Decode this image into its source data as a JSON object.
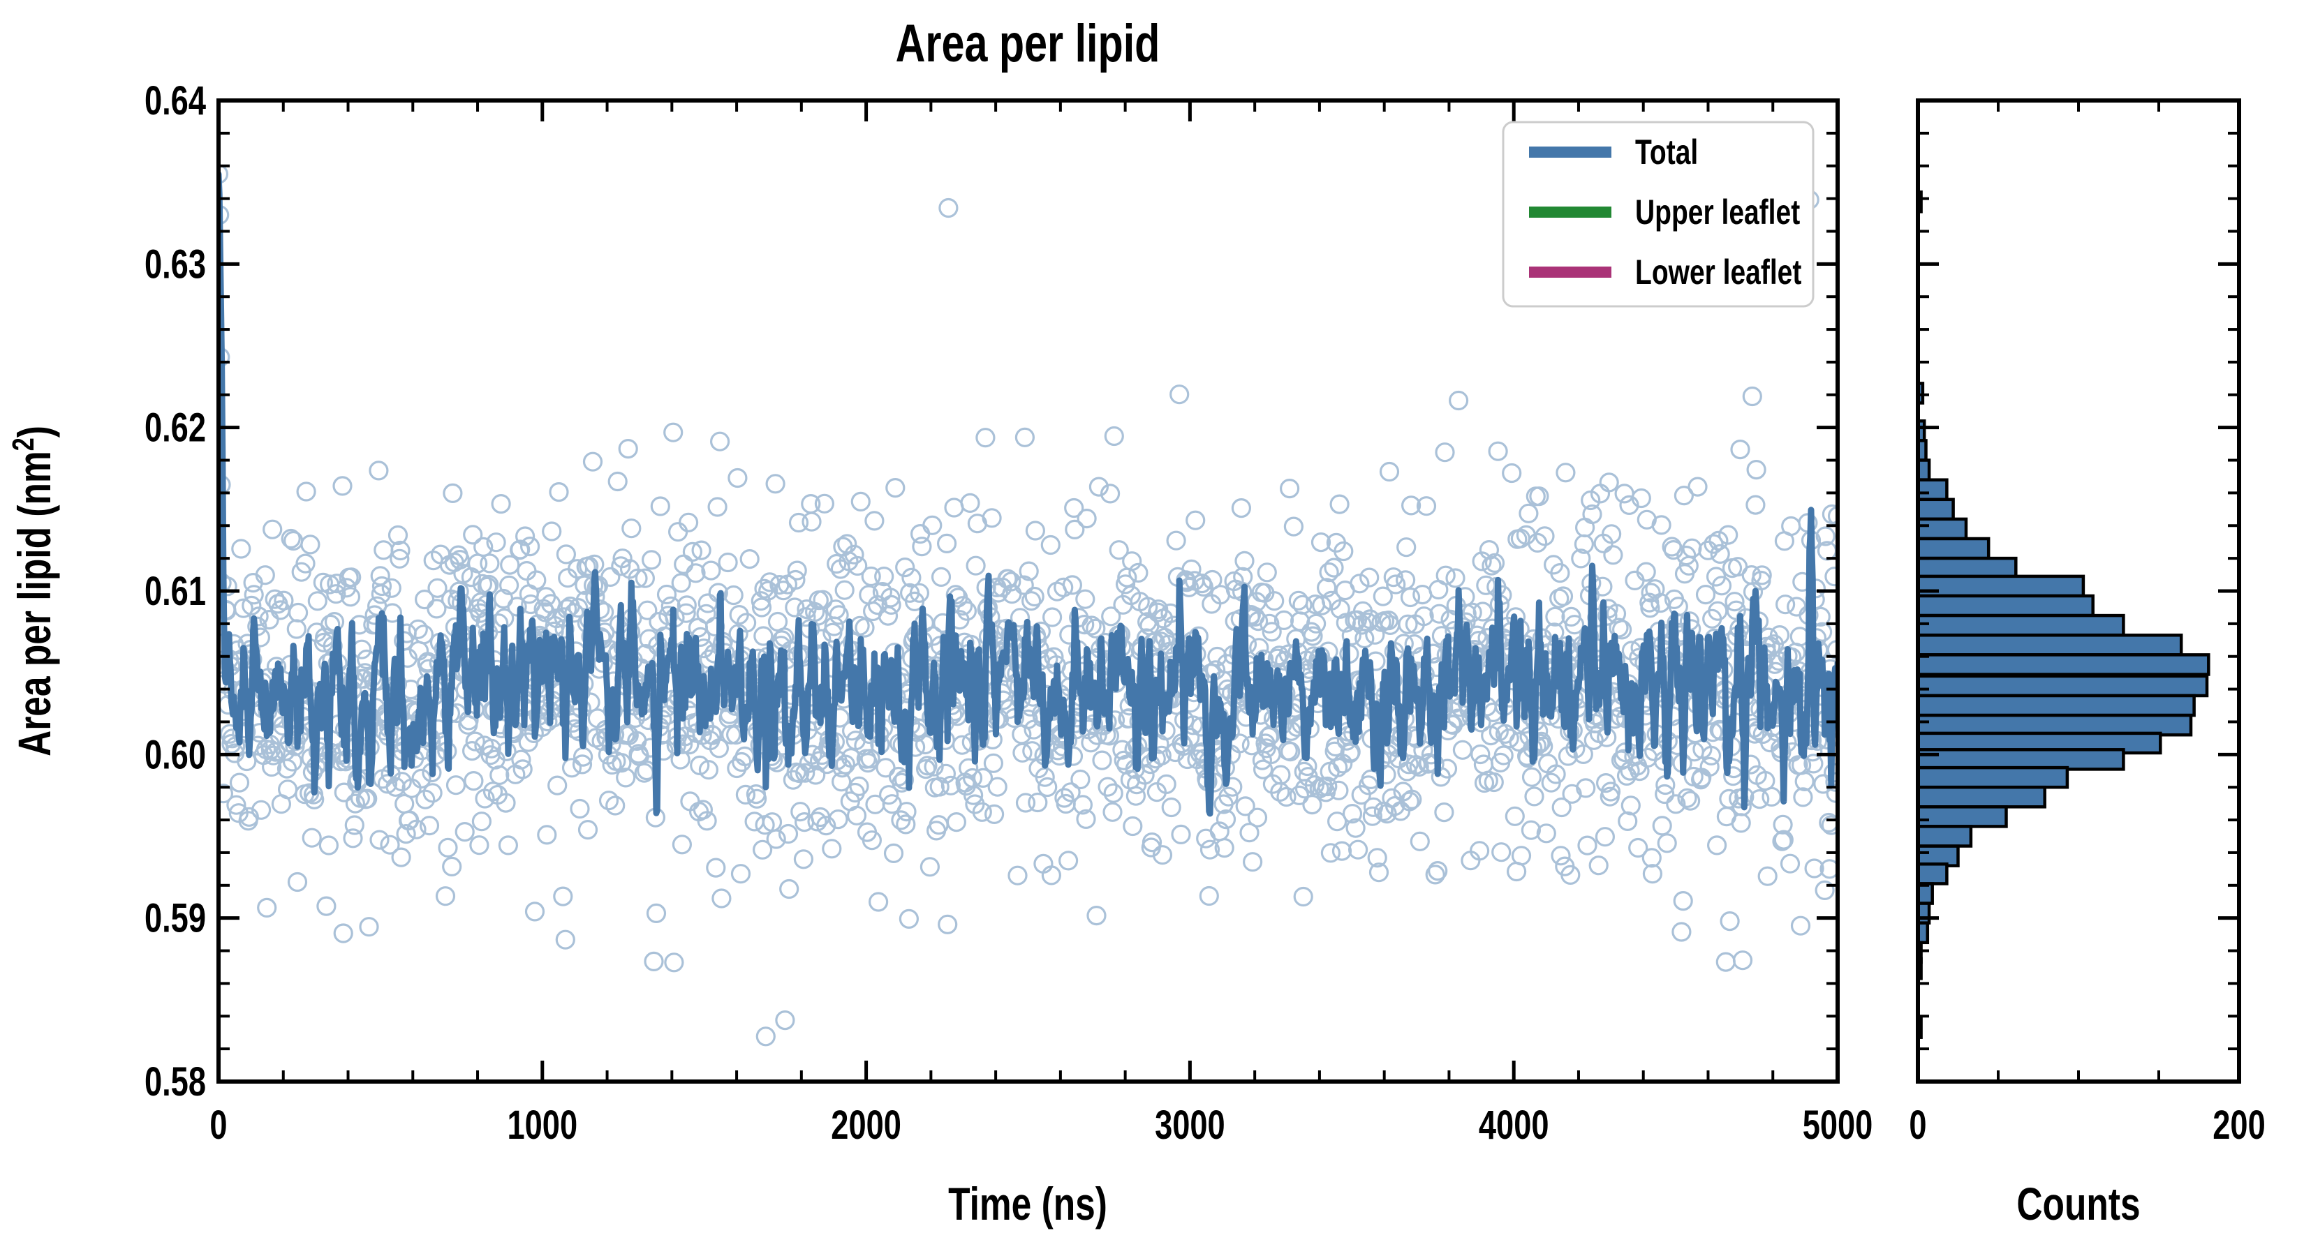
{
  "title": "Area per lipid",
  "main_plot": {
    "xlabel": "Time (ns)",
    "ylabel_prefix": "Area per lipid (nm",
    "ylabel_sup": "2",
    "ylabel_suffix": ")",
    "xlim": [
      0,
      5000
    ],
    "ylim": [
      0.58,
      0.64
    ],
    "x_ticks": {
      "labels": [
        "0",
        "1000",
        "2000",
        "3000",
        "4000",
        "5000"
      ],
      "values": [
        0,
        1000,
        2000,
        3000,
        4000,
        5000
      ],
      "minor_step": 200
    },
    "y_ticks": {
      "labels": [
        "0.58",
        "0.59",
        "0.60",
        "0.61",
        "0.62",
        "0.63",
        "0.64"
      ],
      "values": [
        0.58,
        0.59,
        0.6,
        0.61,
        0.62,
        0.63,
        0.64
      ],
      "minor_step": 0.002
    }
  },
  "hist_plot": {
    "xlabel": "Counts",
    "xlim": [
      0,
      200
    ],
    "x_ticks": {
      "labels": [
        "0",
        "200"
      ],
      "values": [
        0,
        200
      ],
      "minor_values": [
        50,
        100,
        150
      ]
    }
  },
  "legend": {
    "items": [
      {
        "label": "Total",
        "color": "#4477AA"
      },
      {
        "label": "Upper leaflet",
        "color": "#228833"
      },
      {
        "label": "Lower leaflet",
        "color": "#AA3377"
      }
    ]
  },
  "style": {
    "data_color": "#4477AA",
    "scatter_opacity": 0.45,
    "hist_fill": "#4477AA",
    "hist_edge": "#000000",
    "axis_color": "#000000",
    "legend_border": "#cccccc",
    "background": "#ffffff"
  },
  "chart_data": {
    "panels": [
      {
        "type": "scatter",
        "title": "Area per lipid vs time",
        "xlabel": "Time (ns)",
        "ylabel": "Area per lipid (nm^2)",
        "xlim": [
          0,
          5000
        ],
        "ylim": [
          0.58,
          0.64
        ],
        "n_points": 2013,
        "mean": 0.604,
        "sd": 0.0055,
        "transient_start_values": [
          0.6355,
          0.633,
          0.6243,
          0.6165,
          0.6105,
          0.6068
        ],
        "line": {
          "name": "Total",
          "type": "running_mean",
          "window": 5,
          "color": "#4477AA"
        },
        "legend_series": [
          "Total",
          "Upper leaflet",
          "Lower leaflet"
        ],
        "grid": false,
        "legend_position": "upper right"
      },
      {
        "type": "bar",
        "orientation": "horizontal",
        "xlabel": "Counts",
        "xlim": [
          0,
          200
        ],
        "bin_width": 0.0012,
        "bins": [
          [
            0.6338,
            2
          ],
          [
            0.6221,
            3
          ],
          [
            0.6198,
            4
          ],
          [
            0.6186,
            5
          ],
          [
            0.6174,
            7
          ],
          [
            0.6162,
            18
          ],
          [
            0.615,
            22
          ],
          [
            0.6138,
            30
          ],
          [
            0.6126,
            44
          ],
          [
            0.6114,
            61
          ],
          [
            0.6103,
            103
          ],
          [
            0.6091,
            109
          ],
          [
            0.6079,
            128
          ],
          [
            0.6067,
            164
          ],
          [
            0.6055,
            181
          ],
          [
            0.6042,
            180
          ],
          [
            0.603,
            172
          ],
          [
            0.6018,
            170
          ],
          [
            0.6007,
            151
          ],
          [
            0.5997,
            128
          ],
          [
            0.5986,
            93
          ],
          [
            0.5974,
            79
          ],
          [
            0.5962,
            55
          ],
          [
            0.595,
            33
          ],
          [
            0.5938,
            25
          ],
          [
            0.5927,
            18
          ],
          [
            0.5915,
            9
          ],
          [
            0.5903,
            7
          ],
          [
            0.5891,
            6
          ],
          [
            0.5879,
            2
          ],
          [
            0.5869,
            2
          ],
          [
            0.5833,
            2
          ]
        ]
      }
    ]
  }
}
